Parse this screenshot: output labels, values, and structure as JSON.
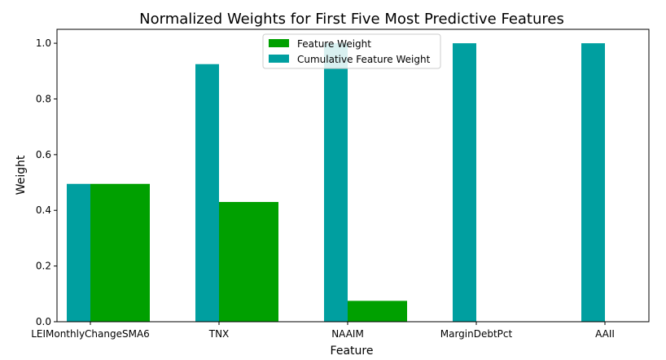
{
  "chart_data": {
    "type": "bar",
    "title": "Normalized Weights for First Five Most Predictive Features",
    "xlabel": "Feature",
    "ylabel": "Weight",
    "categories": [
      "LEIMonthlyChangeSMA6",
      "TNX",
      "NAAIM",
      "MarginDebtPct",
      "AAII"
    ],
    "ylim": [
      0,
      1.05
    ],
    "yticks": [
      0.0,
      0.2,
      0.4,
      0.6,
      0.8,
      1.0
    ],
    "ytick_labels": [
      "0.0",
      "0.2",
      "0.4",
      "0.6",
      "0.8",
      "1.0"
    ],
    "grid": false,
    "legend_position": "top-center",
    "series": [
      {
        "name": "Feature Weight",
        "color": "#00a000",
        "values": [
          0.495,
          0.43,
          0.075,
          0.0,
          0.0
        ]
      },
      {
        "name": "Cumulative Feature Weight",
        "color": "#009fa0",
        "values": [
          0.495,
          0.925,
          1.0,
          1.0,
          1.0
        ]
      }
    ]
  }
}
